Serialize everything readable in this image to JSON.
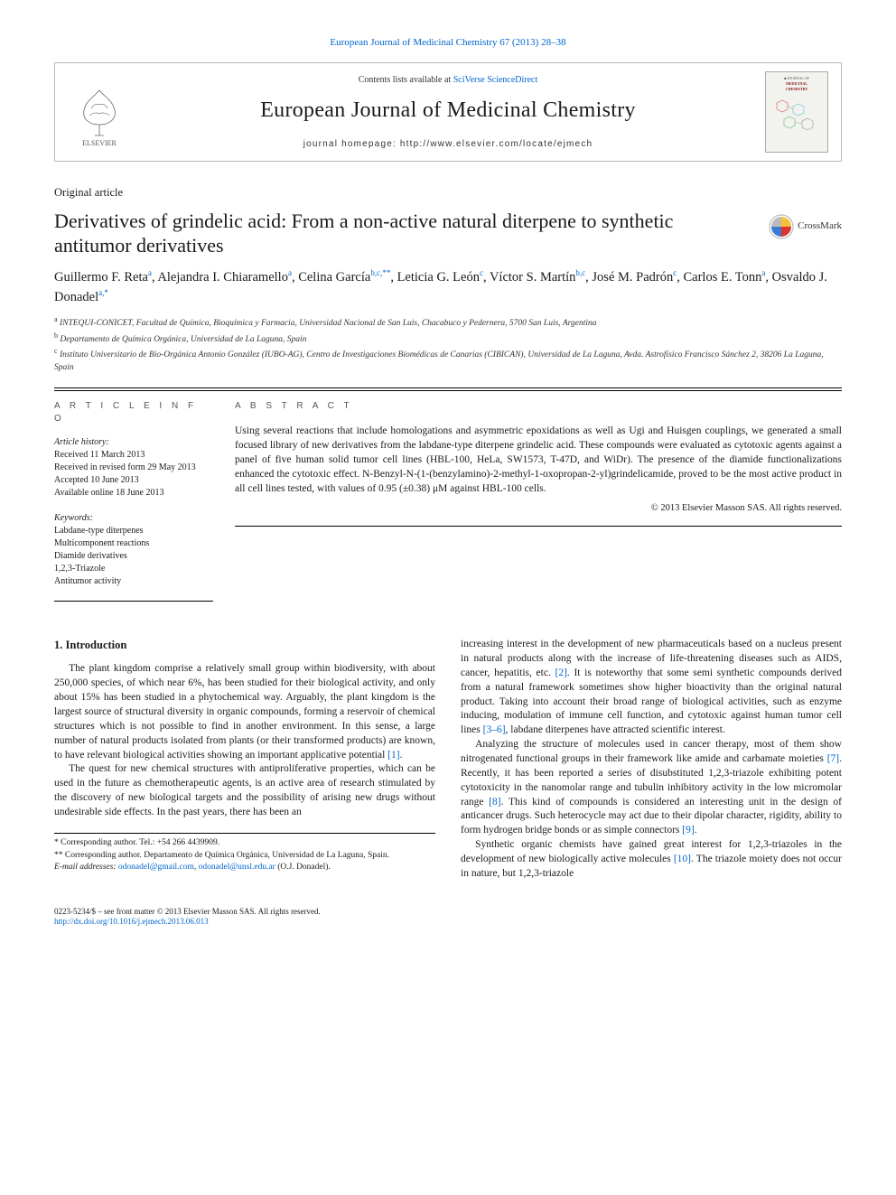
{
  "citation": "European Journal of Medicinal Chemistry 67 (2013) 28–38",
  "masthead": {
    "contents_prefix": "Contents lists available at ",
    "contents_link": "SciVerse ScienceDirect",
    "journal": "European Journal of Medicinal Chemistry",
    "homepage_prefix": "journal homepage: ",
    "homepage_url": "http://www.elsevier.com/locate/ejmech",
    "elsevier_label": "ELSEVIER"
  },
  "article_type": "Original article",
  "title": "Derivatives of grindelic acid: From a non-active natural diterpene to synthetic antitumor derivatives",
  "crossmark": "CrossMark",
  "authors_html": "Guillermo F. Reta<sup>a</sup>, Alejandra I. Chiaramello<sup>a</sup>, Celina García<sup>b,c,**</sup>, Leticia G. León<sup>c</sup>, Víctor S. Martín<sup>b,c</sup>, José M. Padrón<sup>c</sup>, Carlos E. Tonn<sup>a</sup>, Osvaldo J. Donadel<sup>a,*</sup>",
  "affiliations": {
    "a": "INTEQUI-CONICET, Facultad de Química, Bioquímica y Farmacia, Universidad Nacional de San Luis, Chacabuco y Pedernera, 5700 San Luis, Argentina",
    "b": "Departamento de Química Orgánica, Universidad de La Laguna, Spain",
    "c": "Instituto Universitario de Bio-Orgánica Antonio González (IUBO-AG), Centro de Investigaciones Biomédicas de Canarias (CIBICAN), Universidad de La Laguna, Avda. Astrofísico Francisco Sánchez 2, 38206 La Laguna, Spain"
  },
  "article_info": {
    "head": "A R T I C L E  I N F O",
    "history_label": "Article history:",
    "history": [
      "Received 11 March 2013",
      "Received in revised form 29 May 2013",
      "Accepted 10 June 2013",
      "Available online 18 June 2013"
    ],
    "keywords_label": "Keywords:",
    "keywords": [
      "Labdane-type diterpenes",
      "Multicomponent reactions",
      "Diamide derivatives",
      "1,2,3-Triazole",
      "Antitumor activity"
    ]
  },
  "abstract": {
    "head": "A B S T R A C T",
    "text": "Using several reactions that include homologations and asymmetric epoxidations as well as Ugi and Huisgen couplings, we generated a small focused library of new derivatives from the labdane-type diterpene grindelic acid. These compounds were evaluated as cytotoxic agents against a panel of five human solid tumor cell lines (HBL-100, HeLa, SW1573, T-47D, and WiDr). The presence of the diamide functionalizations enhanced the cytotoxic effect. N-Benzyl-N-(1-(benzylamino)-2-methyl-1-oxopropan-2-yl)grindelicamide, proved to be the most active product in all cell lines tested, with values of 0.95 (±0.38) μM against HBL-100 cells.",
    "copyright": "© 2013 Elsevier Masson SAS. All rights reserved."
  },
  "body": {
    "section1_head": "1. Introduction",
    "p1": "The plant kingdom comprise a relatively small group within biodiversity, with about 250,000 species, of which near 6%, has been studied for their biological activity, and only about 15% has been studied in a phytochemical way. Arguably, the plant kingdom is the largest source of structural diversity in organic compounds, forming a reservoir of chemical structures which is not possible to find in another environment. In this sense, a large number of natural products isolated from plants (or their transformed products) are known, to have relevant biological activities showing an important applicative potential ",
    "p1_ref": "[1]",
    "p1_end": ".",
    "p2": "The quest for new chemical structures with antiproliferative properties, which can be used in the future as chemotherapeutic agents, is an active area of research stimulated by the discovery of new biological targets and the possibility of arising new drugs without undesirable side effects. In the past years, there has been an",
    "p3a": "increasing interest in the development of new pharmaceuticals based on a nucleus present in natural products along with the increase of life-threatening diseases such as AIDS, cancer, hepatitis, etc. ",
    "p3_ref1": "[2]",
    "p3b": ". It is noteworthy that some semi synthetic compounds derived from a natural framework sometimes show higher bioactivity than the original natural product. Taking into account their broad range of biological activities, such as enzyme inducing, modulation of immune cell function, and cytotoxic against human tumor cell lines ",
    "p3_ref2": "[3–6]",
    "p3c": ", labdane diterpenes have attracted scientific interest.",
    "p4a": "Analyzing the structure of molecules used in cancer therapy, most of them show nitrogenated functional groups in their framework like amide and carbamate moieties ",
    "p4_ref1": "[7]",
    "p4b": ". Recently, it has been reported a series of disubstituted 1,2,3-triazole exhibiting potent cytotoxicity in the nanomolar range and tubulin inhibitory activity in the low micromolar range ",
    "p4_ref2": "[8]",
    "p4c": ". This kind of compounds is considered an interesting unit in the design of anticancer drugs. Such heterocycle may act due to their dipolar character, rigidity, ability to form hydrogen bridge bonds or as simple connectors ",
    "p4_ref3": "[9]",
    "p4d": ".",
    "p5a": "Synthetic organic chemists have gained great interest for 1,2,3-triazoles in the development of new biologically active molecules ",
    "p5_ref": "[10]",
    "p5b": ". The triazole moiety does not occur in nature, but 1,2,3-triazole"
  },
  "footnotes": {
    "f1": "* Corresponding author. Tel.: +54 266 4439909.",
    "f2": "** Corresponding author. Departamento de Química Orgánica, Universidad de La Laguna, Spain.",
    "email_label": "E-mail addresses:",
    "email1": "odonadel@gmail.com",
    "email_sep": ", ",
    "email2": "odonadel@unsl.edu.ar",
    "email_tail": " (O.J. Donadel)."
  },
  "footer": {
    "line1": "0223-5234/$ – see front matter © 2013 Elsevier Masson SAS. All rights reserved.",
    "doi": "http://dx.doi.org/10.1016/j.ejmech.2013.06.013"
  },
  "colors": {
    "link": "#0066cc",
    "text": "#1a1a1a",
    "rule": "#000000",
    "muted": "#555555",
    "cover_bg": "#f2f3ee",
    "cover_accent1": "#d9534f",
    "cover_accent2": "#5bc0de",
    "cover_accent3": "#5cb85c",
    "crossmark_red": "#d33",
    "crossmark_blue": "#3a7bd5",
    "crossmark_yellow": "#f3c13a",
    "crossmark_gray": "#bbb"
  }
}
